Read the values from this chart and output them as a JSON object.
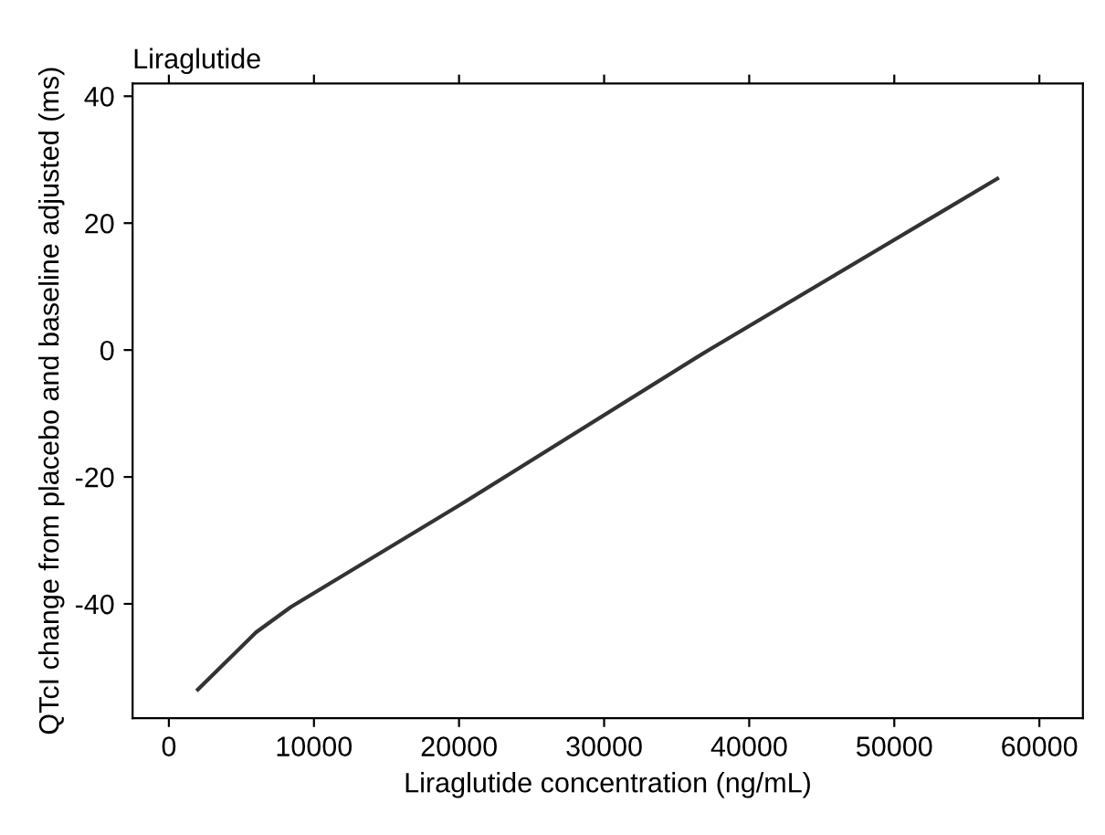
{
  "chart_data": {
    "type": "line",
    "title": "Liraglutide",
    "xlabel": "Liraglutide concentration (ng/mL)",
    "ylabel": "QTcI change from placebo and baseline adjusted (ms)",
    "x": [
      2000,
      4000,
      6000,
      8400,
      20000,
      37200,
      57100
    ],
    "series": [
      {
        "color": "#333333",
        "values": [
          -53.5,
          -49,
          -44.5,
          -40.5,
          -24.5,
          0,
          27
        ]
      }
    ],
    "xlim": [
      -2500,
      63000
    ],
    "ylim": [
      -58,
      42
    ],
    "xticks": [
      0,
      10000,
      20000,
      30000,
      40000,
      50000,
      60000
    ],
    "yticks": [
      -40,
      -20,
      0,
      20,
      40
    ],
    "grid": false,
    "legend": false,
    "marker": "none",
    "line_style": "solid"
  }
}
